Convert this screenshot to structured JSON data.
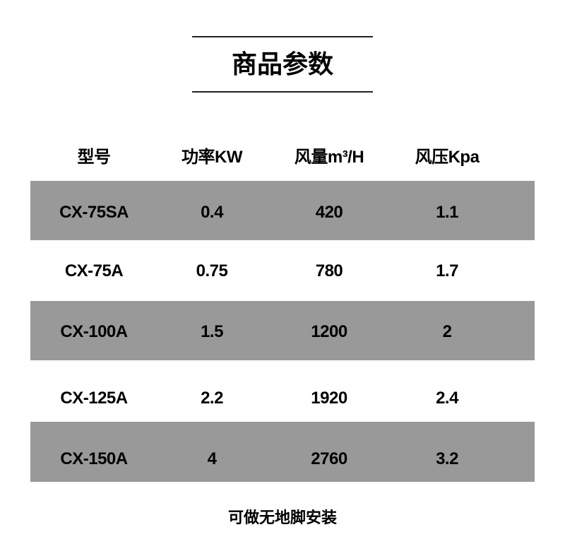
{
  "title": "商品参数",
  "table": {
    "headers": [
      "型号",
      "功率KW",
      "风量m³/H",
      "风压Kpa"
    ],
    "rows": [
      [
        "CX-75SA",
        "0.4",
        "420",
        "1.1"
      ],
      [
        "CX-75A",
        "0.75",
        "780",
        "1.7"
      ],
      [
        "CX-100A",
        "1.5",
        "1200",
        "2"
      ],
      [
        "CX-125A",
        "2.2",
        "1920",
        "2.4"
      ],
      [
        "CX-150A",
        "4",
        "2760",
        "3.2"
      ]
    ],
    "stripe_color": "#999999"
  },
  "footer": "可做无地脚安装"
}
